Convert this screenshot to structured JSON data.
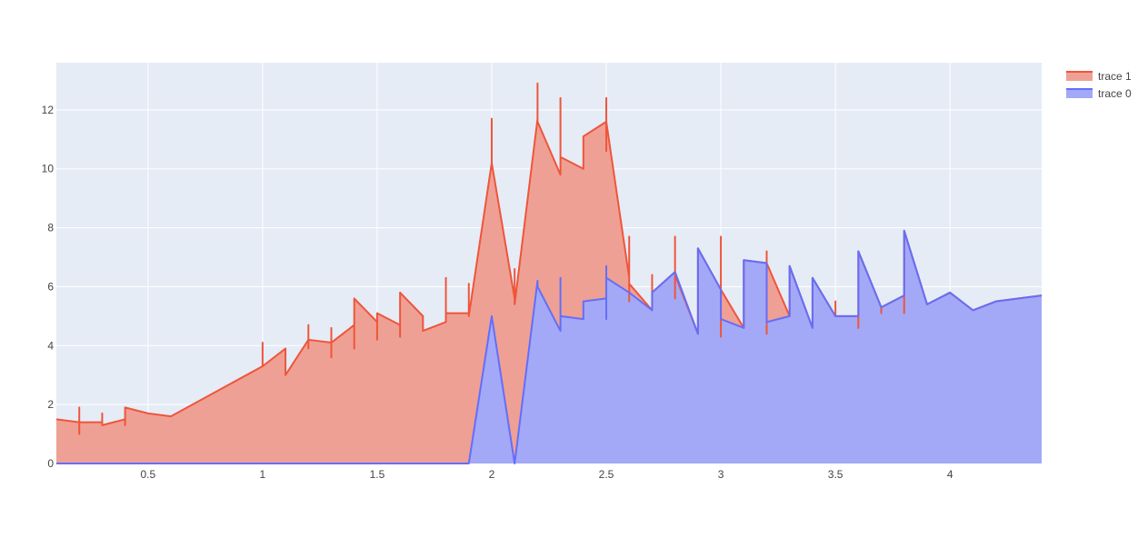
{
  "chart_data": {
    "type": "area",
    "title": "",
    "xlabel": "",
    "ylabel": "",
    "xlim": [
      0.1,
      4.4
    ],
    "ylim": [
      0,
      13.6
    ],
    "grid": true,
    "legend_position": "top-right",
    "x_ticks": [
      0.5,
      1,
      1.5,
      2,
      2.5,
      3,
      3.5,
      4
    ],
    "x_tick_labels": [
      "0.5",
      "1",
      "1.5",
      "2",
      "2.5",
      "3",
      "3.5",
      "4"
    ],
    "y_ticks": [
      0,
      2,
      4,
      6,
      8,
      10,
      12
    ],
    "y_tick_labels": [
      "0",
      "2",
      "4",
      "6",
      "8",
      "10",
      "12"
    ],
    "series": [
      {
        "name": "trace 1",
        "stack_order": 2,
        "line_color": "#EF553B",
        "fill_color": "#EFA094",
        "points": [
          [
            0.1,
            1.5
          ],
          [
            0.2,
            1.4
          ],
          [
            0.2,
            1.9
          ],
          [
            0.2,
            1.0
          ],
          [
            0.2,
            1.4
          ],
          [
            0.3,
            1.4
          ],
          [
            0.3,
            1.7
          ],
          [
            0.3,
            1.3
          ],
          [
            0.4,
            1.5
          ],
          [
            0.4,
            1.3
          ],
          [
            0.4,
            1.9
          ],
          [
            0.5,
            1.7
          ],
          [
            0.6,
            1.6
          ],
          [
            1.0,
            3.3
          ],
          [
            1.0,
            4.1
          ],
          [
            1.0,
            3.3
          ],
          [
            1.1,
            3.9
          ],
          [
            1.1,
            3.0
          ],
          [
            1.2,
            4.2
          ],
          [
            1.2,
            4.7
          ],
          [
            1.2,
            3.9
          ],
          [
            1.2,
            4.2
          ],
          [
            1.3,
            4.1
          ],
          [
            1.3,
            4.6
          ],
          [
            1.3,
            3.6
          ],
          [
            1.3,
            4.1
          ],
          [
            1.4,
            4.7
          ],
          [
            1.4,
            3.9
          ],
          [
            1.4,
            5.6
          ],
          [
            1.5,
            4.8
          ],
          [
            1.5,
            4.2
          ],
          [
            1.5,
            5.1
          ],
          [
            1.6,
            4.7
          ],
          [
            1.6,
            4.3
          ],
          [
            1.6,
            5.8
          ],
          [
            1.7,
            5.0
          ],
          [
            1.7,
            4.5
          ],
          [
            1.8,
            4.8
          ],
          [
            1.8,
            6.3
          ],
          [
            1.8,
            5.1
          ],
          [
            1.9,
            5.1
          ],
          [
            1.9,
            6.1
          ],
          [
            1.9,
            5.0
          ],
          [
            2.0,
            10.2
          ],
          [
            2.0,
            11.7
          ],
          [
            2.0,
            10.2
          ],
          [
            2.1,
            5.6
          ],
          [
            2.1,
            6.6
          ],
          [
            2.1,
            5.4
          ],
          [
            2.2,
            11.7
          ],
          [
            2.2,
            12.9
          ],
          [
            2.2,
            11.6
          ],
          [
            2.3,
            9.8
          ],
          [
            2.3,
            12.4
          ],
          [
            2.3,
            10.4
          ],
          [
            2.4,
            10.0
          ],
          [
            2.4,
            11.1
          ],
          [
            2.5,
            11.6
          ],
          [
            2.5,
            12.4
          ],
          [
            2.5,
            10.6
          ],
          [
            2.5,
            11.6
          ],
          [
            2.6,
            6.3
          ],
          [
            2.6,
            7.7
          ],
          [
            2.6,
            5.5
          ],
          [
            2.6,
            6.1
          ],
          [
            2.7,
            5.2
          ],
          [
            2.7,
            6.4
          ],
          [
            2.7,
            5.8
          ],
          [
            2.8,
            6.5
          ],
          [
            2.8,
            7.7
          ],
          [
            2.8,
            5.6
          ],
          [
            2.8,
            6.4
          ],
          [
            2.9,
            4.4
          ],
          [
            2.9,
            7.3
          ],
          [
            3.0,
            5.9
          ],
          [
            3.0,
            7.7
          ],
          [
            3.0,
            4.3
          ],
          [
            3.0,
            5.9
          ],
          [
            3.1,
            4.6
          ],
          [
            3.1,
            6.9
          ],
          [
            3.2,
            6.8
          ],
          [
            3.2,
            7.2
          ],
          [
            3.2,
            4.4
          ],
          [
            3.2,
            6.8
          ],
          [
            3.3,
            5.0
          ],
          [
            3.3,
            6.7
          ],
          [
            3.4,
            4.6
          ],
          [
            3.4,
            6.3
          ],
          [
            3.5,
            5.0
          ],
          [
            3.5,
            5.5
          ],
          [
            3.5,
            5.0
          ],
          [
            3.6,
            5.0
          ],
          [
            3.6,
            4.6
          ],
          [
            3.6,
            7.2
          ],
          [
            3.7,
            5.3
          ],
          [
            3.7,
            5.1
          ],
          [
            3.7,
            5.3
          ],
          [
            3.8,
            5.7
          ],
          [
            3.8,
            7.9
          ],
          [
            3.8,
            5.1
          ],
          [
            3.8,
            7.9
          ],
          [
            3.9,
            5.4
          ],
          [
            4.0,
            5.8
          ],
          [
            4.1,
            5.2
          ],
          [
            4.2,
            5.5
          ],
          [
            4.4,
            5.7
          ]
        ]
      },
      {
        "name": "trace 0",
        "stack_order": 1,
        "line_color": "#636EFA",
        "fill_color": "#A3A9F6",
        "points": [
          [
            0.1,
            0
          ],
          [
            1.9,
            0
          ],
          [
            2.0,
            5.0
          ],
          [
            2.1,
            0
          ],
          [
            2.2,
            6.2
          ],
          [
            2.2,
            6.0
          ],
          [
            2.3,
            4.5
          ],
          [
            2.3,
            6.3
          ],
          [
            2.3,
            5.0
          ],
          [
            2.4,
            4.9
          ],
          [
            2.4,
            5.5
          ],
          [
            2.5,
            5.6
          ],
          [
            2.5,
            6.7
          ],
          [
            2.5,
            4.9
          ],
          [
            2.5,
            6.3
          ],
          [
            2.6,
            5.8
          ],
          [
            2.7,
            5.2
          ],
          [
            2.7,
            5.8
          ],
          [
            2.8,
            6.5
          ],
          [
            2.9,
            4.4
          ],
          [
            2.9,
            7.3
          ],
          [
            3.0,
            5.9
          ],
          [
            3.0,
            4.9
          ],
          [
            3.1,
            4.6
          ],
          [
            3.1,
            6.9
          ],
          [
            3.2,
            6.8
          ],
          [
            3.2,
            4.8
          ],
          [
            3.3,
            5.0
          ],
          [
            3.3,
            6.7
          ],
          [
            3.4,
            4.6
          ],
          [
            3.4,
            6.3
          ],
          [
            3.5,
            5.0
          ],
          [
            3.6,
            5.0
          ],
          [
            3.6,
            7.2
          ],
          [
            3.7,
            5.3
          ],
          [
            3.8,
            5.7
          ],
          [
            3.8,
            7.9
          ],
          [
            3.9,
            5.4
          ],
          [
            4.0,
            5.8
          ],
          [
            4.1,
            5.2
          ],
          [
            4.2,
            5.5
          ],
          [
            4.4,
            5.7
          ]
        ]
      }
    ]
  }
}
